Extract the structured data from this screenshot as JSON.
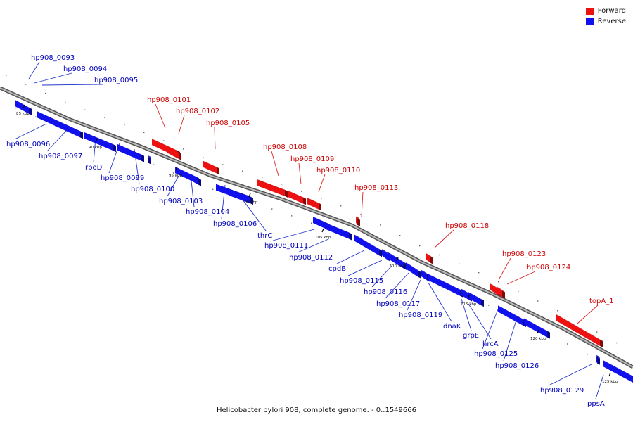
{
  "colors": {
    "forward": "#ee1111",
    "reverse": "#1111ee",
    "backbone": "#888888",
    "label_forward": "#cc0000",
    "label_reverse": "#0000bb",
    "line_forward": "#dd2222",
    "line_reverse": "#2233cc"
  },
  "legend": {
    "forward_label": "Forward",
    "reverse_label": "Reverse"
  },
  "caption": "Helicobacter pylori 908, complete genome. - 0..1549666",
  "ticks": [
    {
      "label": "85 kbp"
    },
    {
      "label": "90 kbp"
    },
    {
      "label": "95 kbp"
    },
    {
      "label": "100 kbp"
    },
    {
      "label": "105 kbp"
    },
    {
      "label": "110 kbp"
    },
    {
      "label": "115 kbp"
    },
    {
      "label": "120 kbp"
    },
    {
      "label": "125 kbp"
    }
  ],
  "genes": [
    {
      "name": "hp908_0093",
      "strand": "forward",
      "label_color": "reverse"
    },
    {
      "name": "hp908_0094",
      "strand": "forward",
      "label_color": "reverse"
    },
    {
      "name": "hp908_0095",
      "strand": "forward",
      "label_color": "reverse"
    },
    {
      "name": "hp908_0096",
      "strand": "reverse"
    },
    {
      "name": "hp908_0097",
      "strand": "reverse"
    },
    {
      "name": "rpoD",
      "strand": "reverse"
    },
    {
      "name": "hp908_0099",
      "strand": "reverse"
    },
    {
      "name": "hp908_0100",
      "strand": "reverse"
    },
    {
      "name": "hp908_0101",
      "strand": "forward"
    },
    {
      "name": "hp908_0102",
      "strand": "forward"
    },
    {
      "name": "hp908_0103",
      "strand": "reverse"
    },
    {
      "name": "hp908_0104",
      "strand": "reverse"
    },
    {
      "name": "hp908_0105",
      "strand": "forward"
    },
    {
      "name": "hp908_0106",
      "strand": "reverse"
    },
    {
      "name": "thrC",
      "strand": "reverse"
    },
    {
      "name": "hp908_0108",
      "strand": "forward"
    },
    {
      "name": "hp908_0109",
      "strand": "forward"
    },
    {
      "name": "hp908_0110",
      "strand": "forward"
    },
    {
      "name": "hp908_0111",
      "strand": "reverse"
    },
    {
      "name": "hp908_0112",
      "strand": "reverse"
    },
    {
      "name": "hp908_0113",
      "strand": "forward"
    },
    {
      "name": "cpdB",
      "strand": "reverse"
    },
    {
      "name": "hp908_0115",
      "strand": "reverse"
    },
    {
      "name": "hp908_0116",
      "strand": "reverse"
    },
    {
      "name": "hp908_0117",
      "strand": "reverse"
    },
    {
      "name": "hp908_0118",
      "strand": "forward"
    },
    {
      "name": "hp908_0119",
      "strand": "reverse"
    },
    {
      "name": "dnaK",
      "strand": "reverse"
    },
    {
      "name": "grpE",
      "strand": "reverse"
    },
    {
      "name": "hp908_0123",
      "strand": "forward"
    },
    {
      "name": "hp908_0124",
      "strand": "forward"
    },
    {
      "name": "hrcA",
      "strand": "reverse"
    },
    {
      "name": "hp908_0125",
      "strand": "reverse"
    },
    {
      "name": "hp908_0126",
      "strand": "reverse"
    },
    {
      "name": "topA_1",
      "strand": "forward"
    },
    {
      "name": "hp908_0129",
      "strand": "reverse"
    },
    {
      "name": "ppsA",
      "strand": "reverse"
    }
  ]
}
